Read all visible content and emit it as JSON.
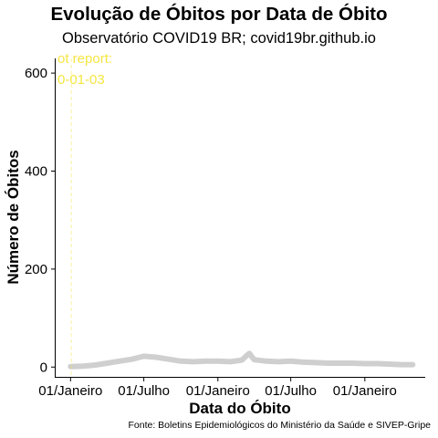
{
  "chart_data": {
    "type": "area",
    "title": "Evolução de Óbitos por Data de Óbito",
    "subtitle": "Observatório COVID19 BR; covid19br.github.io",
    "xlabel": "Data do Óbito",
    "ylabel": "Número de Óbitos",
    "caption": "Fonte: Boletins Epidemiológicos do Ministério da Saúde e SIVEP-Gripe",
    "y_ticks": [
      0,
      200,
      400,
      600
    ],
    "ylim": [
      -20,
      630
    ],
    "x_tick_labels": [
      "01/Janeiro",
      "01/Julho",
      "01/Janeiro",
      "01/Julho",
      "01/Janeiro"
    ],
    "x_tick_dates": [
      "2020-01-01",
      "2020-07-01",
      "2021-01-01",
      "2021-07-01",
      "2022-01-01"
    ],
    "xlim": [
      "2019-11-25",
      "2022-05-31"
    ],
    "report_marker": {
      "date": "2020-01-03",
      "label_lines": [
        "ot report:",
        "0-01-03"
      ],
      "color": "#f5e642"
    },
    "series": [
      {
        "color": "#cfcfcf",
        "x": [
          "2020-01-01",
          "2020-02-01",
          "2020-03-01",
          "2020-04-01",
          "2020-05-01",
          "2020-06-01",
          "2020-07-01",
          "2020-08-01",
          "2020-09-01",
          "2020-10-01",
          "2020-11-01",
          "2020-12-01",
          "2021-01-01",
          "2021-02-01",
          "2021-03-01",
          "2021-03-20",
          "2021-04-01",
          "2021-05-01",
          "2021-06-01",
          "2021-07-01",
          "2021-08-01",
          "2021-09-01",
          "2021-10-01",
          "2021-11-01",
          "2021-12-01",
          "2022-01-01",
          "2022-02-01",
          "2022-03-01",
          "2022-04-01",
          "2022-04-30"
        ],
        "values": [
          1,
          2,
          4,
          8,
          12,
          16,
          22,
          20,
          16,
          12,
          11,
          12,
          12,
          11,
          14,
          28,
          15,
          12,
          11,
          12,
          10,
          9,
          8,
          8,
          8,
          7,
          7,
          6,
          5,
          5
        ]
      }
    ]
  }
}
